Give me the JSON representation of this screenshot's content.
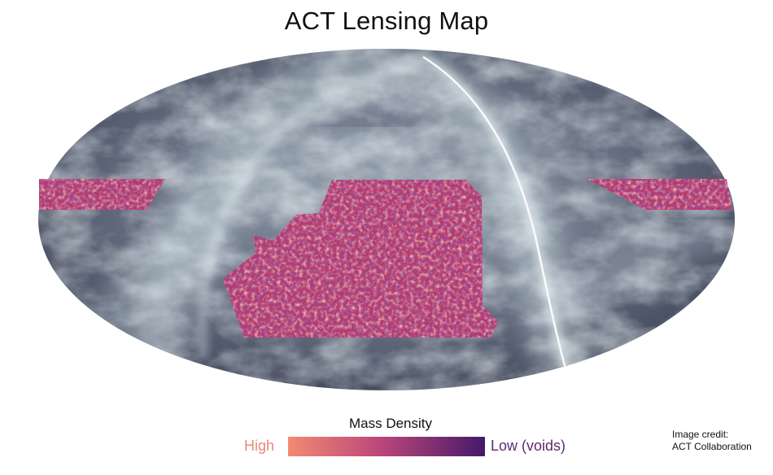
{
  "title": "ACT Lensing Map",
  "legend": {
    "title": "Mass Density",
    "high_label": "High",
    "low_label": "Low (voids)",
    "high_color": "#f28a72",
    "mid_color": "#b8467a",
    "low_color": "#4a1c6c"
  },
  "credit": {
    "line1": "Image credit:",
    "line2": "ACT Collaboration"
  },
  "colors": {
    "sky_dark": "#4e5569",
    "sky_light": "#d6e8ec",
    "lensing_base": "#b5386d"
  }
}
